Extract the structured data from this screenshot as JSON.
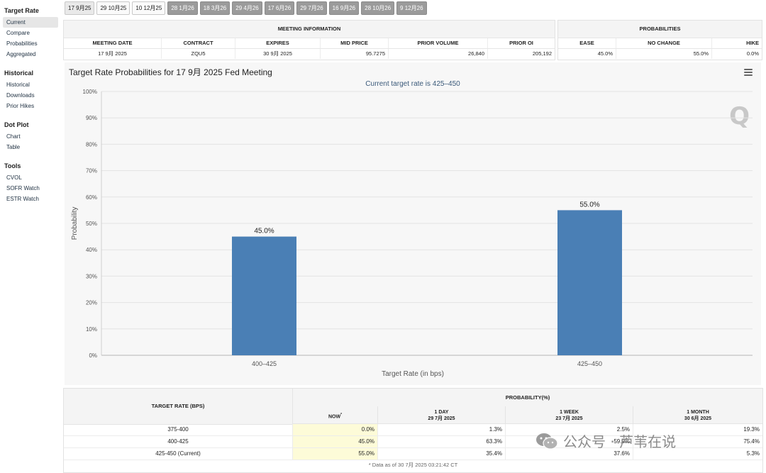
{
  "sidebar": {
    "groups": [
      {
        "title": "Target Rate",
        "items": [
          "Current",
          "Compare",
          "Probabilities",
          "Aggregated"
        ]
      },
      {
        "title": "Historical",
        "items": [
          "Historical",
          "Downloads",
          "Prior Hikes"
        ]
      },
      {
        "title": "Dot Plot",
        "items": [
          "Chart",
          "Table"
        ]
      },
      {
        "title": "Tools",
        "items": [
          "CVOL",
          "SOFR Watch",
          "ESTR Watch"
        ]
      }
    ],
    "active": "Current"
  },
  "tabs": [
    "17 9月25",
    "29 10月25",
    "10 12月25",
    "28 1月26",
    "18 3月26",
    "29 4月26",
    "17 6月26",
    "29 7月26",
    "16 9月26",
    "28 10月26",
    "9 12月26"
  ],
  "meeting_info": {
    "title": "MEETING INFORMATION",
    "headers": [
      "MEETING DATE",
      "CONTRACT",
      "EXPIRES",
      "MID PRICE",
      "PRIOR VOLUME",
      "PRIOR OI"
    ],
    "values": [
      "17 9月 2025",
      "ZQU5",
      "30 9月 2025",
      "95.7275",
      "26,840",
      "205,192"
    ]
  },
  "probabilities": {
    "title": "PROBABILITIES",
    "headers": [
      "EASE",
      "NO CHANGE",
      "HIKE"
    ],
    "values": [
      "45.0%",
      "55.0%",
      "0.0%"
    ]
  },
  "chart": {
    "title": "Target Rate Probabilities for 17 9月 2025 Fed Meeting",
    "subtitle": "Current target rate is 425–450",
    "logo": "Q"
  },
  "chart_data": {
    "type": "bar",
    "title": "Target Rate Probabilities for 17 9月 2025 Fed Meeting",
    "subtitle": "Current target rate is 425–450",
    "categories": [
      "400–425",
      "425–450"
    ],
    "values": [
      45.0,
      55.0
    ],
    "data_labels": [
      "45.0%",
      "55.0%"
    ],
    "xlabel": "Target Rate (in bps)",
    "ylabel": "Probability",
    "ylim": [
      0,
      100
    ],
    "yticks": [
      "0%",
      "10%",
      "20%",
      "30%",
      "40%",
      "50%",
      "60%",
      "70%",
      "80%",
      "90%",
      "100%"
    ],
    "color": "#4a7fb5",
    "grid": true
  },
  "bottom_table": {
    "left_header": "TARGET RATE (BPS)",
    "prob_header": "PROBABILITY(%)",
    "columns": [
      {
        "label": "NOW",
        "sup": "*",
        "date": ""
      },
      {
        "label": "1 DAY",
        "sup": "",
        "date": "29 7月 2025"
      },
      {
        "label": "1 WEEK",
        "sup": "",
        "date": "23 7月 2025"
      },
      {
        "label": "1 MONTH",
        "sup": "",
        "date": "30 6月 2025"
      }
    ],
    "rows": [
      {
        "rate": "375-400",
        "vals": [
          "0.0%",
          "1.3%",
          "2.5%",
          "19.3%"
        ]
      },
      {
        "rate": "400-425",
        "vals": [
          "45.0%",
          "63.3%",
          "59.9%",
          "75.4%"
        ]
      },
      {
        "rate": "425-450 (Current)",
        "vals": [
          "55.0%",
          "35.4%",
          "37.6%",
          "5.3%"
        ]
      }
    ],
    "footnote": "* Data as of 30 7月 2025 03:21:42 CT"
  },
  "watermark": {
    "text": "公众号 · 芦苇在说"
  }
}
